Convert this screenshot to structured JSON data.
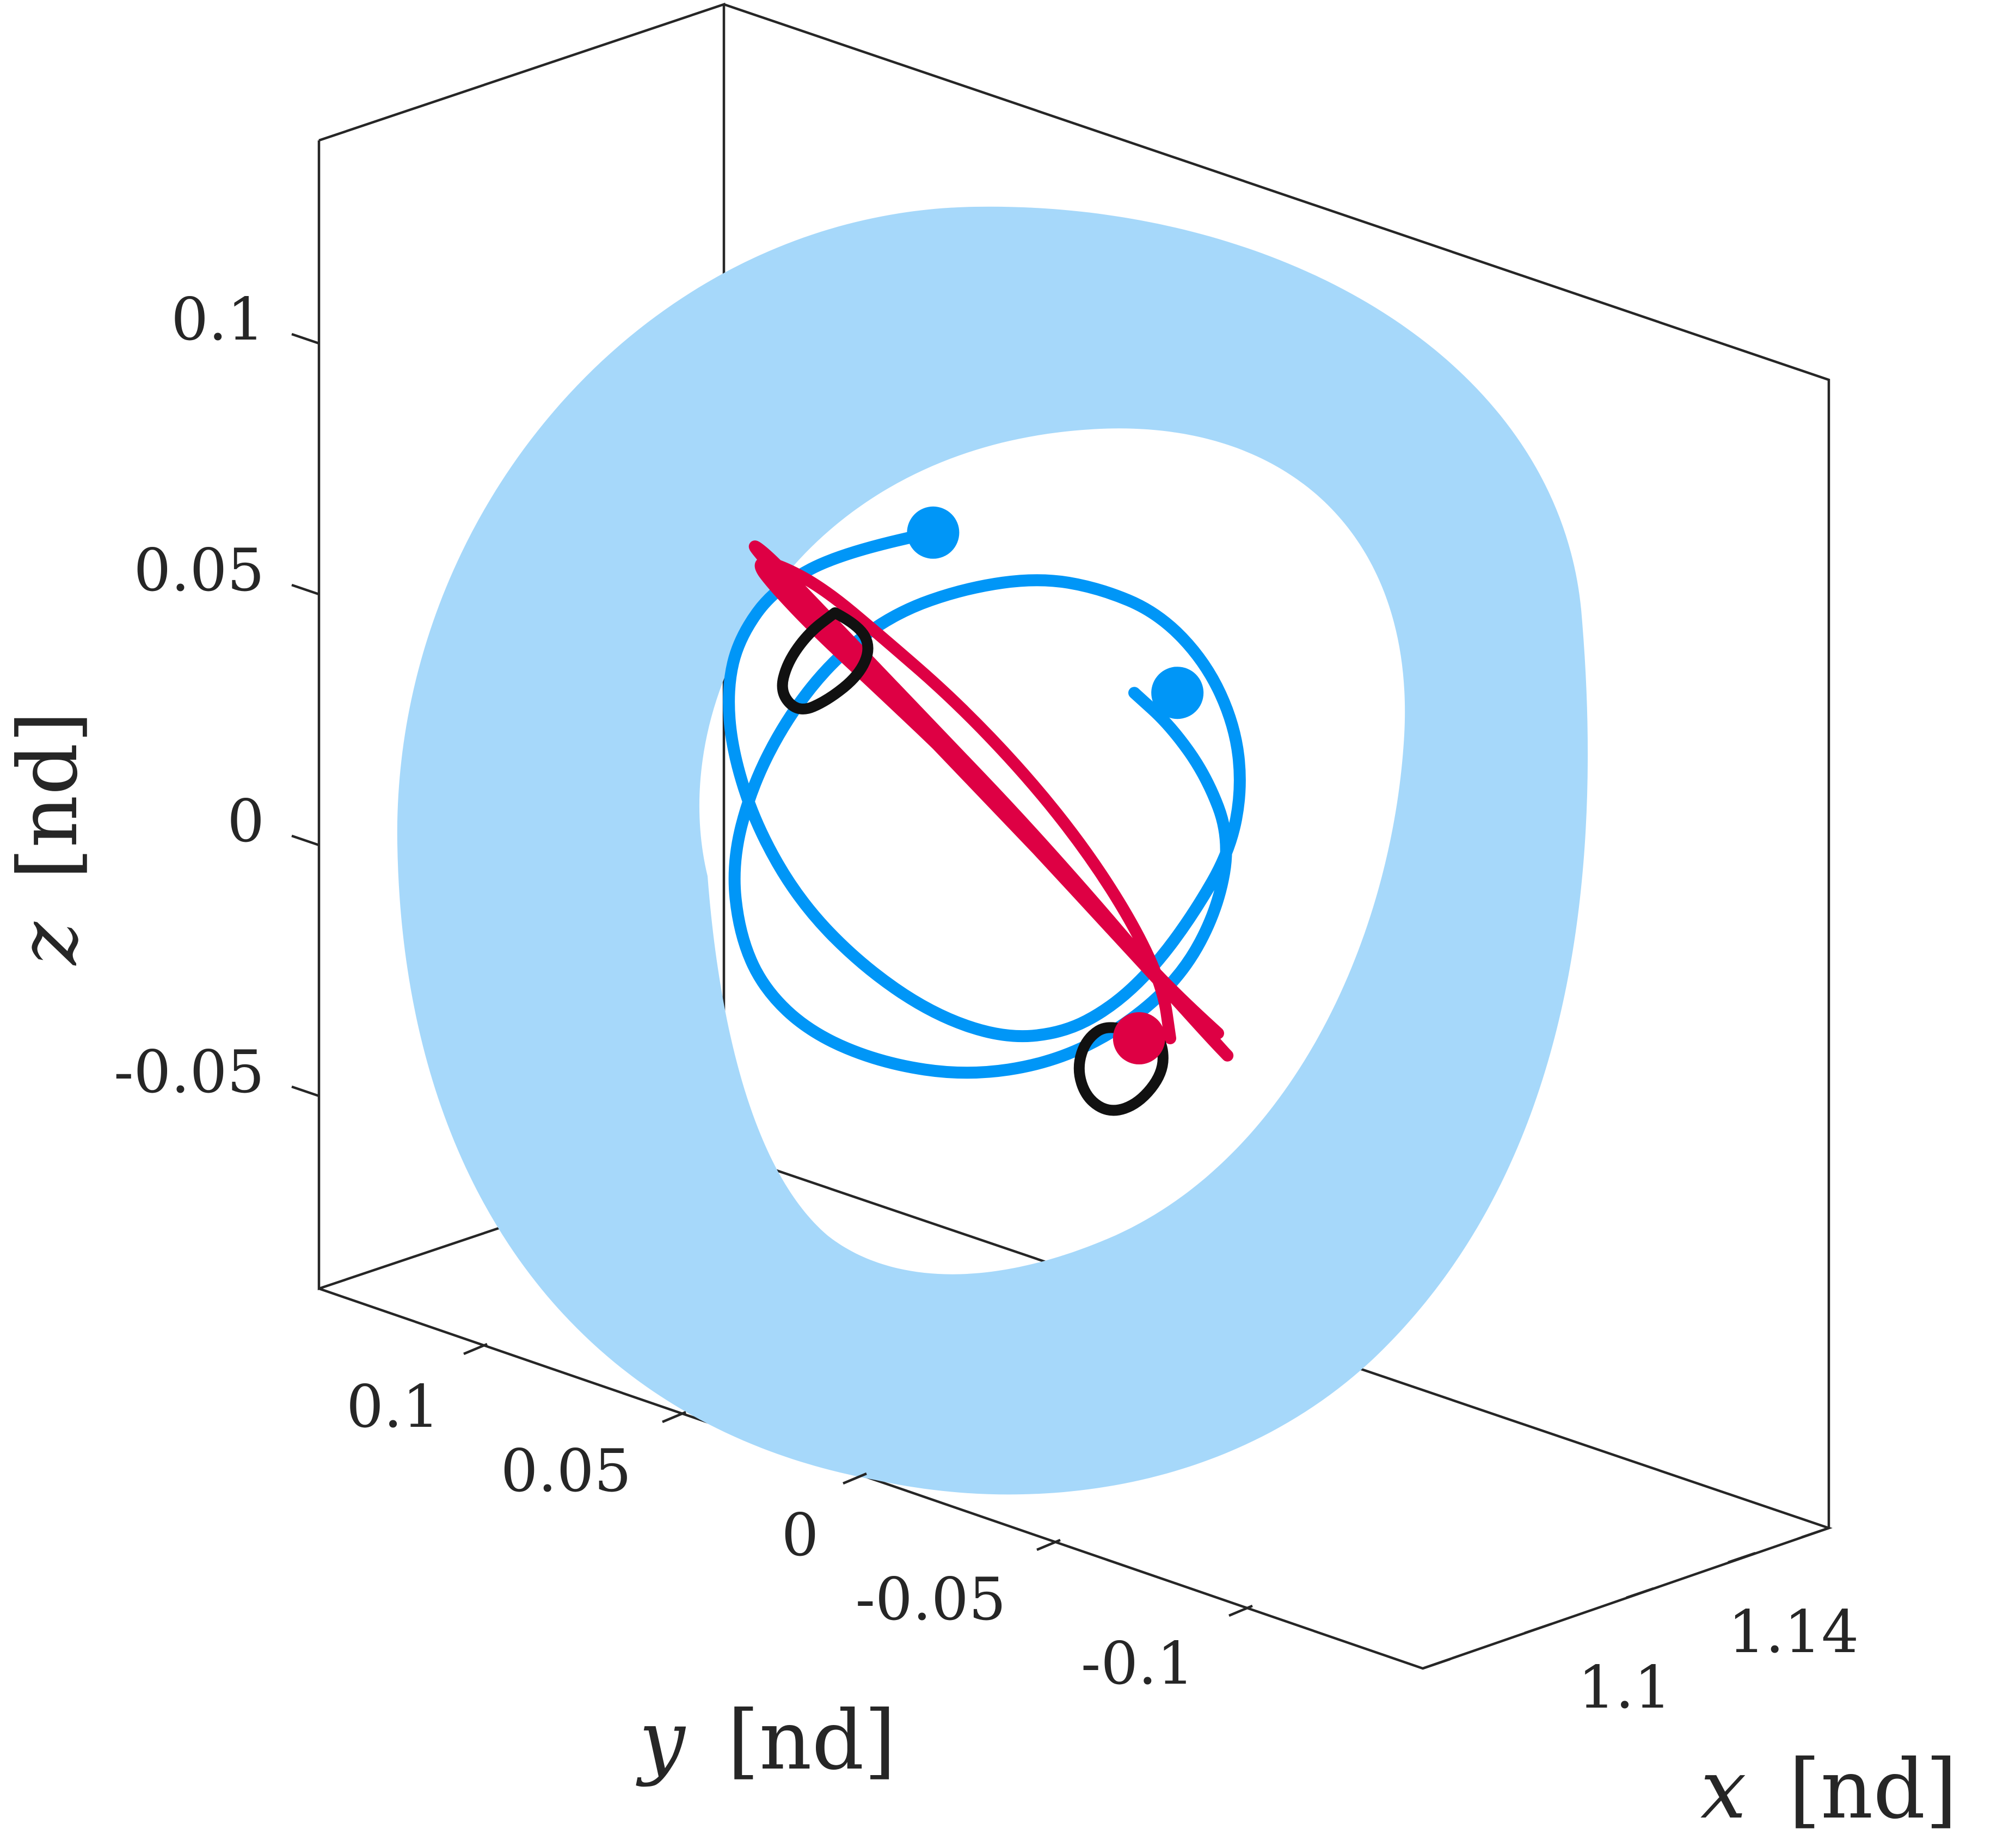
{
  "chart_data": {
    "type": "line",
    "title": "",
    "axes": {
      "x": {
        "label_var": "x",
        "label_unit": "[nd]",
        "ticks": [
          "1.1",
          "1.14"
        ],
        "tick_values": [
          1.1,
          1.14
        ]
      },
      "y": {
        "label_var": "y",
        "label_unit": "[nd]",
        "ticks": [
          "0.1",
          "0.05",
          "0",
          "-0.05",
          "-0.1"
        ],
        "tick_values": [
          0.1,
          0.05,
          0,
          -0.05,
          -0.1
        ]
      },
      "z": {
        "label_var": "z",
        "label_unit": "[nd]",
        "ticks": [
          "0.1",
          "0.05",
          "0",
          "-0.05"
        ],
        "tick_values": [
          0.1,
          0.05,
          0,
          -0.05
        ]
      }
    },
    "view": "3d",
    "grid": false,
    "legend": "none",
    "colors": {
      "surface": "#a6d8fa",
      "blue_series": "#0096f7",
      "red_series": "#de0044",
      "black_series": "#111111"
    },
    "series": [
      {
        "color": "blue_series",
        "y": [
          0.024,
          0.06,
          0.09,
          0.105,
          0.11,
          0.108,
          0.098,
          0.08,
          0.055,
          0.025,
          -0.005,
          -0.03,
          -0.05,
          -0.068,
          -0.085,
          -0.1,
          -0.105,
          -0.102,
          -0.09,
          -0.07,
          -0.045,
          -0.02,
          0.01,
          0.04,
          0.065,
          0.085,
          0.1,
          0.108,
          0.105,
          0.095,
          0.075,
          0.045,
          0.01,
          -0.025,
          -0.055,
          -0.08,
          -0.095,
          -0.1,
          -0.09,
          -0.075,
          -0.06
        ],
        "z": [
          0.122,
          0.115,
          0.1,
          0.08,
          0.06,
          0.035,
          0.005,
          -0.025,
          -0.05,
          -0.07,
          -0.08,
          -0.078,
          -0.068,
          -0.052,
          -0.03,
          -0.005,
          0.02,
          0.045,
          0.07,
          0.09,
          0.1,
          0.104,
          0.1,
          0.09,
          0.072,
          0.048,
          0.02,
          -0.01,
          -0.038,
          -0.06,
          -0.078,
          -0.09,
          -0.095,
          -0.09,
          -0.076,
          -0.055,
          -0.028,
          0.0,
          0.025,
          0.045,
          0.058
        ]
      },
      {
        "color": "red_series",
        "y": [
          -0.095,
          -0.08,
          -0.06,
          -0.035,
          -0.005,
          0.025,
          0.055,
          0.08,
          0.095,
          0.1,
          0.092,
          0.075,
          0.05,
          0.02,
          -0.01,
          -0.04,
          -0.065,
          -0.085,
          -0.097,
          -0.1,
          -0.092,
          -0.075,
          -0.05,
          -0.02,
          0.012,
          0.045,
          0.072,
          0.09,
          0.098,
          0.09,
          0.07,
          0.045,
          0.015,
          -0.015,
          -0.04,
          -0.06,
          -0.072,
          -0.075
        ],
        "z": [
          -0.078,
          -0.065,
          -0.045,
          -0.02,
          0.01,
          0.04,
          0.07,
          0.095,
          0.112,
          0.118,
          0.112,
          0.095,
          0.07,
          0.04,
          0.01,
          -0.022,
          -0.05,
          -0.072,
          -0.085,
          -0.088,
          -0.08,
          -0.062,
          -0.036,
          -0.005,
          0.028,
          0.058,
          0.082,
          0.1,
          0.11,
          0.11,
          0.1,
          0.08,
          0.055,
          0.025,
          -0.005,
          -0.035,
          -0.06,
          -0.08
        ]
      },
      {
        "color": "black_series",
        "y": [
          0.065,
          0.055,
          0.05,
          0.055,
          0.068,
          0.08,
          0.088,
          0.085,
          0.076,
          0.065
        ],
        "z": [
          0.09,
          0.085,
          0.076,
          0.065,
          0.055,
          0.05,
          0.058,
          0.07,
          0.082,
          0.09
        ]
      },
      {
        "color": "black_series",
        "y": [
          -0.06,
          -0.05,
          -0.04,
          -0.036,
          -0.04,
          -0.05,
          -0.062,
          -0.072,
          -0.072,
          -0.066,
          -0.06
        ],
        "z": [
          -0.078,
          -0.074,
          -0.08,
          -0.092,
          -0.104,
          -0.11,
          -0.106,
          -0.094,
          -0.082,
          -0.076,
          -0.078
        ]
      }
    ],
    "markers": [
      {
        "color": "blue_series",
        "y": 0.024,
        "z": 0.122
      },
      {
        "color": "blue_series",
        "y": -0.078,
        "z": 0.058
      },
      {
        "color": "red_series",
        "y": -0.062,
        "z": -0.08
      }
    ],
    "surface_shape": "torus-like annulus around the orbits"
  }
}
